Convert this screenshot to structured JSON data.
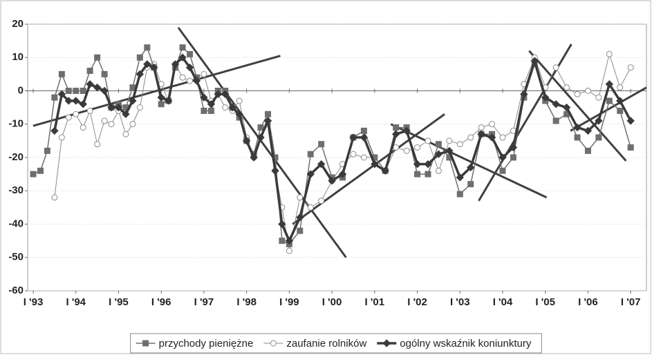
{
  "chart_data": {
    "type": "line",
    "x": [
      1993.0,
      1993.17,
      1993.33,
      1993.5,
      1993.67,
      1993.83,
      1994.0,
      1994.17,
      1994.33,
      1994.5,
      1994.67,
      1994.83,
      1995.0,
      1995.17,
      1995.33,
      1995.5,
      1995.67,
      1995.83,
      1996.0,
      1996.17,
      1996.33,
      1996.5,
      1996.67,
      1996.83,
      1997.0,
      1997.17,
      1997.33,
      1997.5,
      1997.67,
      1997.83,
      1998.0,
      1998.17,
      1998.33,
      1998.5,
      1998.67,
      1998.83,
      1999.0,
      1999.25,
      1999.5,
      1999.75,
      2000.0,
      2000.25,
      2000.5,
      2000.75,
      2001.0,
      2001.25,
      2001.5,
      2001.75,
      2002.0,
      2002.25,
      2002.5,
      2002.75,
      2003.0,
      2003.25,
      2003.5,
      2003.75,
      2004.0,
      2004.25,
      2004.5,
      2004.75,
      2005.0,
      2005.25,
      2005.5,
      2005.75,
      2006.0,
      2006.25,
      2006.5,
      2006.75,
      2007.0
    ],
    "series": [
      {
        "name": "przychody pieniężne",
        "color": "#6e6e6e",
        "marker": "square",
        "width": 1.5,
        "values": [
          -25,
          -24,
          -18,
          -2,
          5,
          0,
          0,
          0,
          6,
          10,
          5,
          -5,
          -4,
          -5,
          1,
          10,
          13,
          7,
          -4,
          -3,
          7,
          13,
          11,
          4,
          -6,
          -6,
          0,
          0,
          -5,
          -8,
          -15,
          -19,
          -11,
          -7,
          -20,
          -45,
          -46,
          -42,
          -19,
          -16,
          -26,
          -26,
          -14,
          -12,
          -20,
          -24,
          -11,
          -11,
          -25,
          -25,
          -16,
          -20,
          -31,
          -28,
          -13,
          -13,
          -24,
          -20,
          -2,
          8,
          -3,
          -9,
          -7,
          -14,
          -18,
          -14,
          -3,
          -6,
          -17
        ]
      },
      {
        "name": "zaufanie rolników",
        "color": "#8a8a8a",
        "marker": "circle",
        "width": 1,
        "values": [
          null,
          null,
          null,
          -32,
          -14,
          -8,
          -7,
          -11,
          -6,
          -16,
          -9,
          -10,
          -6,
          -13,
          -10,
          -5,
          7,
          8,
          2,
          -3,
          8,
          4,
          3,
          4,
          5,
          -3,
          -1,
          -5,
          -6,
          -3,
          -14,
          -20,
          -14,
          -10,
          -24,
          -35,
          -48,
          -32,
          -35,
          -33,
          -27,
          -22,
          -19,
          -20,
          -20,
          -24,
          -17,
          -18,
          -17,
          -15,
          -24,
          -15,
          -16,
          -14,
          -11,
          -10,
          -14,
          -12,
          2,
          10,
          1,
          7,
          1,
          -1,
          0,
          -2,
          11,
          1,
          7
        ]
      },
      {
        "name": "ogólny wskaźnik koniunktury",
        "color": "#3a3a3a",
        "marker": "diamond",
        "width": 3.5,
        "values": [
          null,
          null,
          null,
          -12,
          -1,
          -3,
          -3,
          -4,
          2,
          1,
          0,
          -5,
          -5,
          -7,
          -3,
          5,
          8,
          7,
          -2,
          -3,
          8,
          10,
          7,
          3,
          -2,
          -4,
          -1,
          -1,
          -5,
          -7,
          -15,
          -20,
          -14,
          -9,
          -24,
          -40,
          -45,
          -38,
          -25,
          -22,
          -27,
          -25,
          -14,
          -14,
          -22,
          -24,
          -13,
          -12,
          -22,
          -22,
          -19,
          -18,
          -26,
          -23,
          -13,
          -14,
          -20,
          -17,
          -1,
          9,
          -2,
          -4,
          -5,
          -11,
          -12,
          -9,
          2,
          -3,
          -9
        ]
      }
    ],
    "trend_lines": [
      {
        "x": [
          1993.0,
          1998.79
        ],
        "y": [
          -10.5,
          10.5
        ]
      },
      {
        "x": [
          1996.4,
          2000.33
        ],
        "y": [
          19,
          -50
        ]
      },
      {
        "x": [
          1999.08,
          2002.64
        ],
        "y": [
          -40,
          -7
        ]
      },
      {
        "x": [
          2001.38,
          2005.03
        ],
        "y": [
          -10,
          -32
        ]
      },
      {
        "x": [
          2003.44,
          2005.61
        ],
        "y": [
          -33,
          14
        ]
      },
      {
        "x": [
          2004.62,
          2006.89
        ],
        "y": [
          12,
          -21
        ]
      },
      {
        "x": [
          2005.59,
          2007.37
        ],
        "y": [
          -12,
          1
        ]
      }
    ],
    "trend_color": "#404040",
    "xlim": [
      1992.87,
      2007.37
    ],
    "ylim": [
      -60,
      20
    ],
    "yticks": [
      -60,
      -50,
      -40,
      -30,
      -20,
      -10,
      0,
      10,
      20
    ],
    "xticks": [
      {
        "value": 1993,
        "label": "I '93"
      },
      {
        "value": 1994,
        "label": "I '94"
      },
      {
        "value": 1995,
        "label": "I '95"
      },
      {
        "value": 1996,
        "label": "I '96"
      },
      {
        "value": 1997,
        "label": "I '97"
      },
      {
        "value": 1998,
        "label": "I '98"
      },
      {
        "value": 1999,
        "label": "I '99"
      },
      {
        "value": 2000,
        "label": "I '00"
      },
      {
        "value": 2001,
        "label": "I '01"
      },
      {
        "value": 2002,
        "label": "I '02"
      },
      {
        "value": 2003,
        "label": "I '03"
      },
      {
        "value": 2004,
        "label": "I '04"
      },
      {
        "value": 2005,
        "label": "I '05"
      },
      {
        "value": 2006,
        "label": "I '06"
      },
      {
        "value": 2007,
        "label": "I '07"
      }
    ],
    "grid": true,
    "legend": "bottom"
  }
}
